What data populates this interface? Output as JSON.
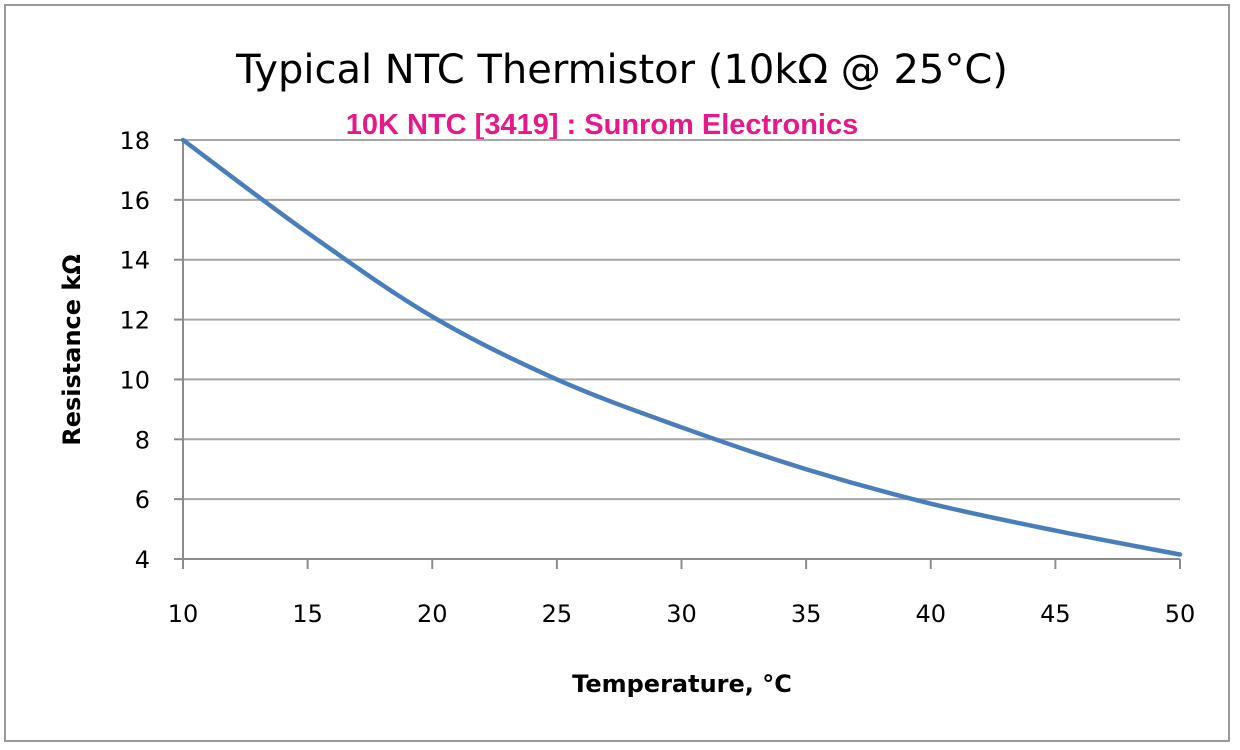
{
  "colors": {
    "subtitle": "#e8178a",
    "series": "#4a7ebb",
    "grid": "#a6a6a6",
    "frame": "#9a9a9a"
  },
  "chart_data": {
    "type": "line",
    "title": "Typical NTC Thermistor (10kΩ @ 25°C)",
    "subtitle": "10K NTC [3419] : Sunrom Electronics",
    "xlabel": "Temperature, °C",
    "ylabel": "Resistance kΩ",
    "xlim": [
      10,
      50
    ],
    "ylim": [
      4,
      18
    ],
    "xticks": [
      10,
      15,
      20,
      25,
      30,
      35,
      40,
      45,
      50
    ],
    "yticks": [
      4,
      6,
      8,
      10,
      12,
      14,
      16,
      18
    ],
    "grid": true,
    "legend": "none",
    "series": [
      {
        "x": [
          10,
          15,
          20,
          25,
          30,
          35,
          40,
          45,
          50
        ],
        "y": [
          18.0,
          14.9,
          12.1,
          10.0,
          8.4,
          7.0,
          5.85,
          4.95,
          4.15
        ]
      }
    ]
  }
}
